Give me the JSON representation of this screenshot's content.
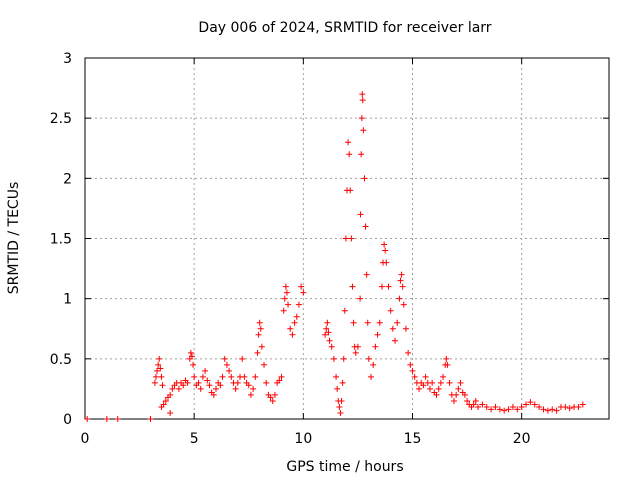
{
  "chart_data": {
    "type": "scatter",
    "title": "Day 006 of 2024, SRMTID for receiver larr",
    "xlabel": "GPS time / hours",
    "ylabel": "SRMTID / TECUs",
    "xlim": [
      0,
      24
    ],
    "ylim": [
      0,
      3
    ],
    "xticks": [
      0,
      5,
      10,
      15,
      20
    ],
    "yticks": [
      0,
      0.5,
      1,
      1.5,
      2,
      2.5,
      3
    ],
    "xtick_labels": [
      "0",
      "5",
      "10",
      "15",
      "20"
    ],
    "ytick_labels": [
      "0",
      "0.5",
      "1",
      "1.5",
      "2",
      "2.5",
      "3"
    ],
    "grid": true,
    "marker": "+",
    "series": [
      {
        "name": "SRMTID",
        "color": "#ff0000",
        "points": [
          [
            0.1,
            0
          ],
          [
            1.0,
            0
          ],
          [
            1.5,
            0
          ],
          [
            3.0,
            0
          ],
          [
            3.2,
            0.3
          ],
          [
            3.25,
            0.35
          ],
          [
            3.3,
            0.4
          ],
          [
            3.35,
            0.45
          ],
          [
            3.4,
            0.5
          ],
          [
            3.45,
            0.42
          ],
          [
            3.5,
            0.35
          ],
          [
            3.55,
            0.28
          ],
          [
            3.5,
            0.1
          ],
          [
            3.6,
            0.12
          ],
          [
            3.7,
            0.15
          ],
          [
            3.8,
            0.18
          ],
          [
            3.9,
            0.2
          ],
          [
            3.9,
            0.05
          ],
          [
            4.0,
            0.25
          ],
          [
            4.1,
            0.28
          ],
          [
            4.2,
            0.3
          ],
          [
            4.3,
            0.25
          ],
          [
            4.4,
            0.3
          ],
          [
            4.5,
            0.28
          ],
          [
            4.6,
            0.32
          ],
          [
            4.7,
            0.3
          ],
          [
            4.8,
            0.5
          ],
          [
            4.85,
            0.55
          ],
          [
            4.9,
            0.52
          ],
          [
            4.95,
            0.45
          ],
          [
            5.0,
            0.35
          ],
          [
            5.1,
            0.28
          ],
          [
            5.2,
            0.3
          ],
          [
            5.3,
            0.25
          ],
          [
            5.4,
            0.35
          ],
          [
            5.5,
            0.4
          ],
          [
            5.6,
            0.32
          ],
          [
            5.7,
            0.28
          ],
          [
            5.8,
            0.22
          ],
          [
            5.9,
            0.2
          ],
          [
            6.0,
            0.25
          ],
          [
            6.1,
            0.3
          ],
          [
            6.2,
            0.28
          ],
          [
            6.3,
            0.35
          ],
          [
            6.4,
            0.5
          ],
          [
            6.5,
            0.45
          ],
          [
            6.6,
            0.4
          ],
          [
            6.7,
            0.35
          ],
          [
            6.8,
            0.3
          ],
          [
            6.9,
            0.25
          ],
          [
            7.0,
            0.3
          ],
          [
            7.1,
            0.35
          ],
          [
            7.2,
            0.5
          ],
          [
            7.3,
            0.35
          ],
          [
            7.4,
            0.3
          ],
          [
            7.5,
            0.28
          ],
          [
            7.6,
            0.2
          ],
          [
            7.7,
            0.25
          ],
          [
            7.8,
            0.35
          ],
          [
            7.9,
            0.55
          ],
          [
            7.95,
            0.7
          ],
          [
            8.0,
            0.8
          ],
          [
            8.05,
            0.75
          ],
          [
            8.1,
            0.6
          ],
          [
            8.2,
            0.45
          ],
          [
            8.3,
            0.3
          ],
          [
            8.4,
            0.2
          ],
          [
            8.5,
            0.18
          ],
          [
            8.6,
            0.15
          ],
          [
            8.7,
            0.2
          ],
          [
            8.8,
            0.3
          ],
          [
            8.9,
            0.32
          ],
          [
            9.0,
            0.35
          ],
          [
            9.1,
            0.9
          ],
          [
            9.15,
            1.0
          ],
          [
            9.2,
            1.1
          ],
          [
            9.25,
            1.05
          ],
          [
            9.3,
            0.95
          ],
          [
            9.4,
            0.75
          ],
          [
            9.5,
            0.7
          ],
          [
            9.6,
            0.8
          ],
          [
            9.7,
            0.85
          ],
          [
            9.8,
            0.95
          ],
          [
            9.9,
            1.1
          ],
          [
            10.0,
            1.05
          ],
          [
            11.0,
            0.7
          ],
          [
            11.05,
            0.75
          ],
          [
            11.1,
            0.8
          ],
          [
            11.15,
            0.72
          ],
          [
            11.2,
            0.65
          ],
          [
            11.3,
            0.6
          ],
          [
            11.4,
            0.5
          ],
          [
            11.5,
            0.35
          ],
          [
            11.55,
            0.25
          ],
          [
            11.6,
            0.15
          ],
          [
            11.65,
            0.1
          ],
          [
            11.7,
            0.05
          ],
          [
            11.75,
            0.15
          ],
          [
            11.8,
            0.3
          ],
          [
            11.85,
            0.5
          ],
          [
            11.9,
            0.9
          ],
          [
            11.95,
            1.5
          ],
          [
            12.0,
            1.9
          ],
          [
            12.05,
            2.3
          ],
          [
            12.1,
            2.2
          ],
          [
            12.15,
            1.9
          ],
          [
            12.2,
            1.5
          ],
          [
            12.25,
            1.1
          ],
          [
            12.3,
            0.8
          ],
          [
            12.35,
            0.6
          ],
          [
            12.4,
            0.55
          ],
          [
            12.5,
            0.6
          ],
          [
            12.6,
            1.0
          ],
          [
            12.62,
            1.7
          ],
          [
            12.65,
            2.2
          ],
          [
            12.68,
            2.5
          ],
          [
            12.7,
            2.7
          ],
          [
            12.72,
            2.65
          ],
          [
            12.75,
            2.4
          ],
          [
            12.8,
            2.0
          ],
          [
            12.85,
            1.6
          ],
          [
            12.9,
            1.2
          ],
          [
            12.95,
            0.8
          ],
          [
            13.0,
            0.5
          ],
          [
            13.1,
            0.35
          ],
          [
            13.2,
            0.45
          ],
          [
            13.3,
            0.6
          ],
          [
            13.4,
            0.7
          ],
          [
            13.5,
            0.8
          ],
          [
            13.6,
            1.1
          ],
          [
            13.65,
            1.3
          ],
          [
            13.7,
            1.45
          ],
          [
            13.75,
            1.4
          ],
          [
            13.8,
            1.3
          ],
          [
            13.9,
            1.1
          ],
          [
            14.0,
            0.9
          ],
          [
            14.1,
            0.75
          ],
          [
            14.2,
            0.65
          ],
          [
            14.3,
            0.8
          ],
          [
            14.4,
            1.0
          ],
          [
            14.45,
            1.15
          ],
          [
            14.5,
            1.2
          ],
          [
            14.55,
            1.1
          ],
          [
            14.6,
            0.95
          ],
          [
            14.7,
            0.75
          ],
          [
            14.8,
            0.55
          ],
          [
            14.9,
            0.45
          ],
          [
            15.0,
            0.4
          ],
          [
            15.1,
            0.35
          ],
          [
            15.2,
            0.3
          ],
          [
            15.3,
            0.25
          ],
          [
            15.4,
            0.3
          ],
          [
            15.5,
            0.28
          ],
          [
            15.6,
            0.35
          ],
          [
            15.7,
            0.3
          ],
          [
            15.8,
            0.25
          ],
          [
            15.9,
            0.3
          ],
          [
            16.0,
            0.22
          ],
          [
            16.1,
            0.2
          ],
          [
            16.2,
            0.25
          ],
          [
            16.3,
            0.3
          ],
          [
            16.4,
            0.35
          ],
          [
            16.5,
            0.45
          ],
          [
            16.55,
            0.5
          ],
          [
            16.6,
            0.45
          ],
          [
            16.7,
            0.3
          ],
          [
            16.8,
            0.2
          ],
          [
            16.9,
            0.15
          ],
          [
            17.0,
            0.2
          ],
          [
            17.1,
            0.25
          ],
          [
            17.2,
            0.3
          ],
          [
            17.3,
            0.22
          ],
          [
            17.4,
            0.2
          ],
          [
            17.5,
            0.15
          ],
          [
            17.6,
            0.12
          ],
          [
            17.7,
            0.1
          ],
          [
            17.8,
            0.12
          ],
          [
            17.9,
            0.15
          ],
          [
            18.0,
            0.1
          ],
          [
            18.2,
            0.12
          ],
          [
            18.4,
            0.1
          ],
          [
            18.6,
            0.08
          ],
          [
            18.8,
            0.1
          ],
          [
            19.0,
            0.08
          ],
          [
            19.2,
            0.07
          ],
          [
            19.4,
            0.08
          ],
          [
            19.6,
            0.1
          ],
          [
            19.8,
            0.08
          ],
          [
            20.0,
            0.1
          ],
          [
            20.2,
            0.12
          ],
          [
            20.4,
            0.14
          ],
          [
            20.6,
            0.12
          ],
          [
            20.8,
            0.1
          ],
          [
            21.0,
            0.08
          ],
          [
            21.2,
            0.07
          ],
          [
            21.4,
            0.08
          ],
          [
            21.6,
            0.07
          ],
          [
            21.8,
            0.1
          ],
          [
            22.0,
            0.1
          ],
          [
            22.2,
            0.09
          ],
          [
            22.4,
            0.1
          ],
          [
            22.6,
            0.1
          ],
          [
            22.8,
            0.12
          ]
        ]
      }
    ]
  }
}
